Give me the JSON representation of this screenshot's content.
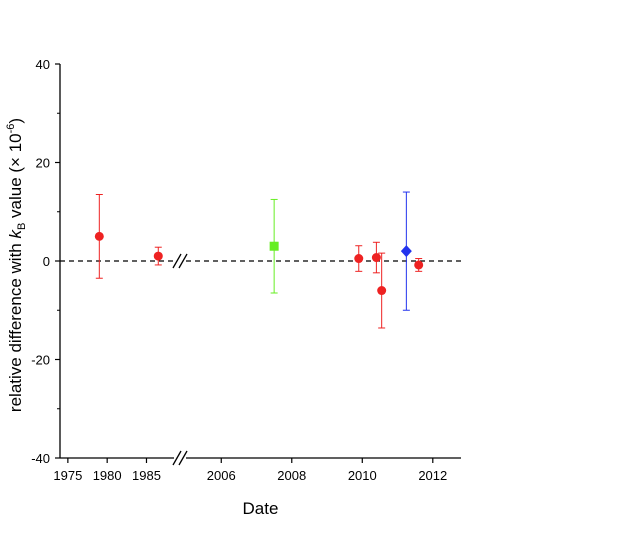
{
  "chart_data": {
    "type": "scatter",
    "title": "",
    "xlabel": "Date",
    "ylabel": {
      "prefix": "relative difference with ",
      "var": "k",
      "sub": "B",
      "mid": " value (× 10",
      "sup": "-6",
      "suffix": ")"
    },
    "ylim": [
      -40,
      40
    ],
    "yticks": [
      -40,
      -20,
      0,
      20,
      40
    ],
    "x_axis": {
      "broken": true,
      "segments": [
        {
          "range": [
            1974,
            1988.5
          ],
          "ticks": [
            1975,
            1980,
            1985
          ]
        },
        {
          "range": [
            2005,
            2012.8
          ],
          "ticks": [
            2006,
            2008,
            2010,
            2012
          ]
        }
      ]
    },
    "reference_line": {
      "y": 0,
      "style": "dashed"
    },
    "grid": false,
    "legend": false,
    "series": [
      {
        "marker": "circle",
        "color": "#ee2222",
        "points": [
          {
            "x": 1979,
            "y": 5,
            "yerr": 8.5
          },
          {
            "x": 1986.5,
            "y": 1,
            "yerr": 1.8
          },
          {
            "x": 2009.9,
            "y": 0.5,
            "yerr": 2.6
          },
          {
            "x": 2010.4,
            "y": 0.7,
            "yerr": 3.1
          },
          {
            "x": 2010.55,
            "y": -6,
            "yerr": 7.6
          },
          {
            "x": 2011.6,
            "y": -0.8,
            "yerr": 1.3
          }
        ]
      },
      {
        "marker": "square",
        "color": "#66ee22",
        "points": [
          {
            "x": 2007.5,
            "y": 3,
            "yerr": 9.5
          }
        ]
      },
      {
        "marker": "diamond",
        "color": "#2233ee",
        "points": [
          {
            "x": 2011.25,
            "y": 2,
            "yerr": 12
          }
        ]
      }
    ]
  }
}
